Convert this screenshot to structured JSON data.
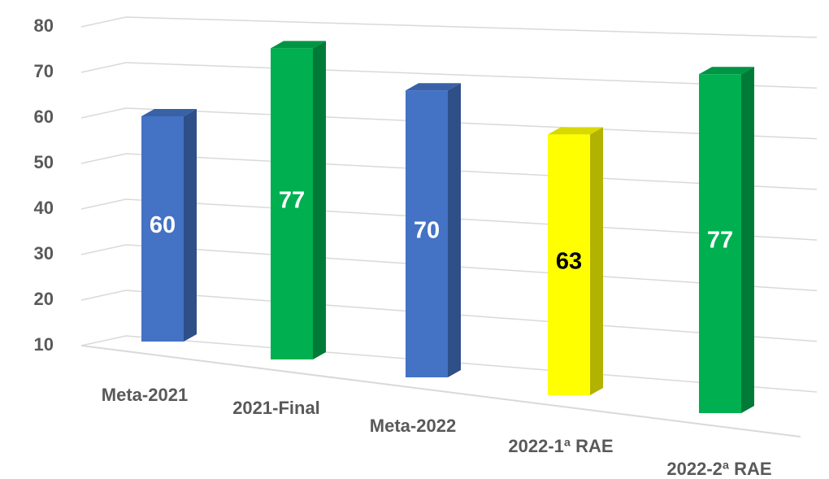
{
  "chart_data": {
    "type": "bar3d",
    "categories": [
      "Meta-2021",
      "2021-Final",
      "Meta-2022",
      "2022-1ª RAE",
      "2022-2ª RAE"
    ],
    "values": [
      60,
      77,
      70,
      63,
      77
    ],
    "colors": [
      "#4472c4",
      "#00b050",
      "#4472c4",
      "#ffff00",
      "#00b050"
    ],
    "label_colors": [
      "#ffffff",
      "#ffffff",
      "#ffffff",
      "#000000",
      "#ffffff"
    ],
    "ylim": [
      10,
      80
    ],
    "yticks": [
      10,
      20,
      30,
      40,
      50,
      60,
      70,
      80
    ],
    "grid": true
  }
}
